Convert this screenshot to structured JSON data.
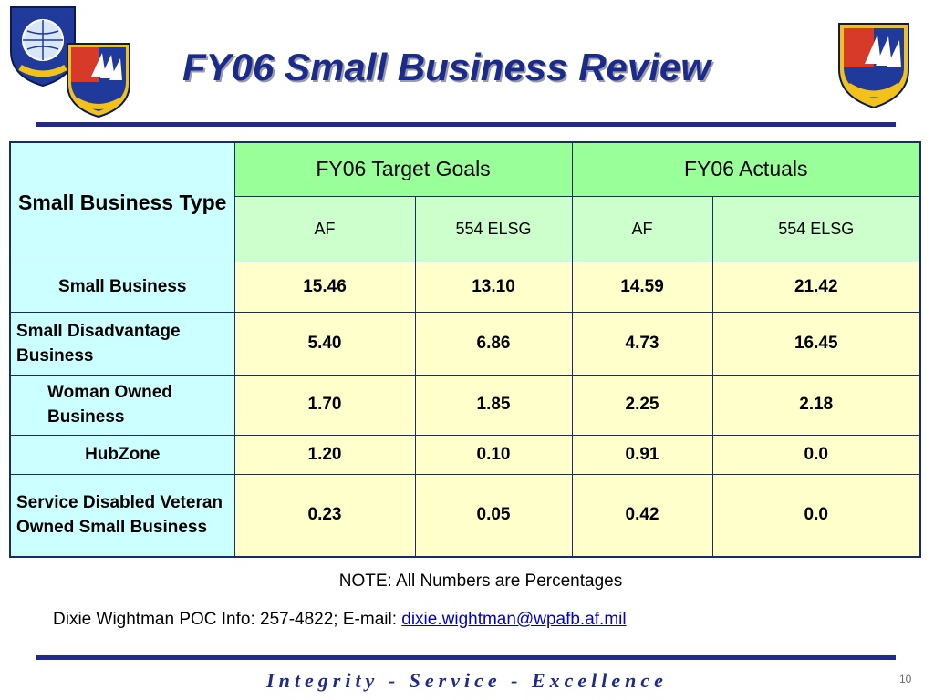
{
  "slide": {
    "title": "FY06 Small Business Review",
    "note": "NOTE: All Numbers are Percentages",
    "poc_label": "Dixie Wightman POC Info:  257-4822; E-mail: ",
    "poc_email": "dixie.wightman@wpafb.af.mil",
    "motto": "Integrity - Service - Excellence",
    "page_number": "10"
  },
  "emblems": {
    "left_back": "electronic-systems-center-shield-icon",
    "left_front": "554th-electronic-systems-wing-shield-icon",
    "right": "electronic-systems-group-shield-icon",
    "colors": {
      "blue": "#1f3a9a",
      "red": "#d83a2a",
      "yellow": "#f2c21a",
      "white": "#ffffff"
    }
  },
  "table": {
    "type_header": "Small Business Type",
    "groups": [
      "FY06 Target Goals",
      "FY06 Actuals"
    ],
    "subheaders": [
      "AF",
      "554 ELSG",
      "AF",
      "554 ELSG"
    ],
    "rows": [
      {
        "label": "Small Business",
        "values": [
          "15.46",
          "13.10",
          "14.59",
          "21.42"
        ]
      },
      {
        "label": "Small Disadvantage Business",
        "values": [
          "5.40",
          "6.86",
          "4.73",
          "16.45"
        ]
      },
      {
        "label": "Woman Owned Business",
        "values": [
          "1.70",
          "1.85",
          "2.25",
          "2.18"
        ]
      },
      {
        "label": "HubZone",
        "values": [
          "1.20",
          "0.10",
          "0.91",
          "0.0"
        ]
      },
      {
        "label": "Service Disabled Veteran Owned Small Business",
        "values": [
          "0.23",
          "0.05",
          "0.42",
          "0.0"
        ]
      }
    ]
  },
  "colors": {
    "title": "#1a2b8c",
    "rule": "#1f2a8a",
    "label_cell": "#ccffff",
    "group_header": "#99ff99",
    "sub_header": "#ccffcc",
    "value_cell": "#ffffcc",
    "link": "#0000cc"
  }
}
